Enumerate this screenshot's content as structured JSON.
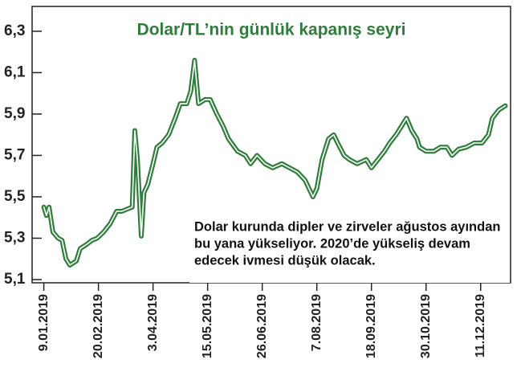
{
  "chart_data": {
    "type": "line",
    "title": "Dolar/TL’nin günlük kapanış seyri",
    "annotation": [
      "Dolar kurunda dipler ve zirveler ağustos ayından",
      "bu yana yükseliyor. 2020’de yükseliş devam",
      "edecek ivmesi düşük olacak."
    ],
    "x": [
      "2019-01-09",
      "2019-01-11",
      "2019-01-13",
      "2019-01-16",
      "2019-01-20",
      "2019-01-23",
      "2019-01-26",
      "2019-01-29",
      "2019-02-03",
      "2019-02-06",
      "2019-02-11",
      "2019-02-15",
      "2019-02-19",
      "2019-02-24",
      "2019-03-01",
      "2019-03-06",
      "2019-03-10",
      "2019-03-14",
      "2019-03-18",
      "2019-03-20",
      "2019-03-22",
      "2019-03-25",
      "2019-03-27",
      "2019-03-30",
      "2019-04-03",
      "2019-04-06",
      "2019-04-10",
      "2019-04-15",
      "2019-04-20",
      "2019-04-24",
      "2019-04-29",
      "2019-05-02",
      "2019-05-05",
      "2019-05-08",
      "2019-05-13",
      "2019-05-17",
      "2019-05-22",
      "2019-05-27",
      "2019-05-31",
      "2019-06-07",
      "2019-06-13",
      "2019-06-17",
      "2019-06-22",
      "2019-06-28",
      "2019-07-04",
      "2019-07-11",
      "2019-07-17",
      "2019-07-23",
      "2019-07-29",
      "2019-08-04",
      "2019-08-07",
      "2019-08-11",
      "2019-08-16",
      "2019-08-20",
      "2019-08-23",
      "2019-08-28",
      "2019-09-01",
      "2019-09-07",
      "2019-09-14",
      "2019-09-18",
      "2019-09-23",
      "2019-09-28",
      "2019-10-02",
      "2019-10-07",
      "2019-10-11",
      "2019-10-15",
      "2019-10-19",
      "2019-10-23",
      "2019-10-25",
      "2019-10-30",
      "2019-11-05",
      "2019-11-10",
      "2019-11-15",
      "2019-11-19",
      "2019-11-24",
      "2019-11-30",
      "2019-12-06",
      "2019-12-12",
      "2019-12-17",
      "2019-12-20",
      "2019-12-25",
      "2019-12-30"
    ],
    "series": [
      {
        "color": "#2e7d3a",
        "values": [
          5.45,
          5.41,
          5.45,
          5.33,
          5.3,
          5.29,
          5.2,
          5.17,
          5.19,
          5.25,
          5.27,
          5.29,
          5.3,
          5.33,
          5.37,
          5.43,
          5.43,
          5.44,
          5.45,
          5.82,
          5.68,
          5.31,
          5.52,
          5.56,
          5.66,
          5.74,
          5.76,
          5.8,
          5.88,
          5.95,
          5.95,
          6.01,
          6.16,
          5.95,
          5.97,
          5.97,
          5.9,
          5.84,
          5.78,
          5.72,
          5.7,
          5.66,
          5.7,
          5.66,
          5.64,
          5.66,
          5.64,
          5.62,
          5.58,
          5.5,
          5.54,
          5.68,
          5.78,
          5.8,
          5.76,
          5.7,
          5.68,
          5.66,
          5.68,
          5.64,
          5.68,
          5.72,
          5.76,
          5.8,
          5.84,
          5.88,
          5.82,
          5.78,
          5.74,
          5.72,
          5.72,
          5.74,
          5.74,
          5.7,
          5.73,
          5.74,
          5.76,
          5.76,
          5.8,
          5.88,
          5.92,
          5.94
        ]
      }
    ],
    "xlim": [
      "2018-12-31",
      "2020-01-03"
    ],
    "xticks": [
      {
        "value": "2019-01-09",
        "label": "9.01.2019"
      },
      {
        "value": "2019-02-20",
        "label": "20.02.2019"
      },
      {
        "value": "2019-04-03",
        "label": "3.04.2019"
      },
      {
        "value": "2019-05-15",
        "label": "15.05.2019"
      },
      {
        "value": "2019-06-26",
        "label": "26.06.2019"
      },
      {
        "value": "2019-08-07",
        "label": "7.08.2019"
      },
      {
        "value": "2019-09-18",
        "label": "18.09.2019"
      },
      {
        "value": "2019-10-30",
        "label": "30.10.2019"
      },
      {
        "value": "2019-12-11",
        "label": "11.12.2019"
      }
    ],
    "ylim": [
      5.1,
      6.42
    ],
    "yticks": [
      {
        "value": 5.1,
        "label": "5,1"
      },
      {
        "value": 5.3,
        "label": "5,3"
      },
      {
        "value": 5.5,
        "label": "5,5"
      },
      {
        "value": 5.7,
        "label": "5,7"
      },
      {
        "value": 5.9,
        "label": "5,9"
      },
      {
        "value": 6.1,
        "label": "6,1"
      },
      {
        "value": 6.3,
        "label": "6,3"
      }
    ]
  }
}
